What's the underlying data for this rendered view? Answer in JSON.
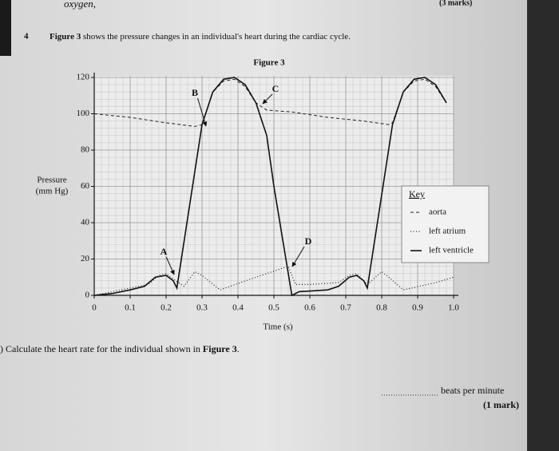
{
  "header": {
    "handwriting": "oxygen,",
    "marks": "(3 marks)"
  },
  "question": {
    "number": "4",
    "parts": [
      "Figure 3",
      " shows the pressure changes in an individual's heart during the cardiac cycle."
    ]
  },
  "subquestion": {
    "parts": [
      ") Calculate the heart rate for the individual shown in ",
      "Figure 3",
      "."
    ]
  },
  "answer": {
    "unit": "beats per minute",
    "marks": "(1 mark)"
  },
  "chart_data": {
    "type": "line",
    "title": "Figure 3",
    "xlabel": "Time (s)",
    "ylabel": [
      "Pressure",
      "(mm Hg)"
    ],
    "xlim": [
      0,
      1
    ],
    "ylim": [
      0,
      120
    ],
    "xticks": [
      0,
      0.1,
      0.2,
      0.3,
      0.4,
      0.5,
      0.6,
      0.7,
      0.8,
      0.9,
      {
        "value": 1,
        "label": "1.0"
      }
    ],
    "yticks": [
      0,
      20,
      40,
      60,
      80,
      100,
      120
    ],
    "grid": true,
    "legend": "right",
    "legend_title": "Key",
    "annotations": [
      "A",
      "B",
      "C",
      "D"
    ],
    "series": [
      {
        "name": "aorta",
        "color": "#222",
        "style": "dashed",
        "x": [
          0,
          0.1,
          0.2,
          0.28,
          0.3,
          0.33,
          0.36,
          0.39,
          0.42,
          0.45,
          0.48,
          0.55,
          0.65,
          0.75,
          0.82,
          0.83,
          0.86,
          0.89,
          0.92,
          0.95,
          0.98
        ],
        "values": [
          100,
          98,
          95,
          93,
          94,
          112,
          118,
          119,
          115,
          106,
          102,
          101,
          98,
          96,
          94,
          95,
          112,
          118,
          119,
          115,
          106
        ]
      },
      {
        "name": "left atrium",
        "color": "#222",
        "style": "dotted",
        "x": [
          0,
          0.1,
          0.15,
          0.18,
          0.2,
          0.22,
          0.25,
          0.28,
          0.3,
          0.35,
          0.45,
          0.54,
          0.56,
          0.6,
          0.68,
          0.71,
          0.73,
          0.76,
          0.8,
          0.82,
          0.86,
          0.95,
          1
        ],
        "values": [
          0,
          4,
          6,
          11,
          12,
          9,
          5,
          13,
          11,
          3,
          10,
          16,
          6,
          6,
          7,
          11,
          12,
          6,
          13,
          10,
          3,
          7,
          10
        ]
      },
      {
        "name": "left ventricle",
        "color": "#111",
        "style": "solid",
        "x": [
          0,
          0.05,
          0.1,
          0.14,
          0.17,
          0.2,
          0.22,
          0.23,
          0.3,
          0.33,
          0.36,
          0.39,
          0.42,
          0.45,
          0.48,
          0.5,
          0.55,
          0.57,
          0.65,
          0.68,
          0.71,
          0.73,
          0.75,
          0.76,
          0.83,
          0.86,
          0.89,
          0.92,
          0.95,
          0.98
        ],
        "values": [
          0,
          1,
          3,
          5,
          10,
          11,
          8,
          4,
          94,
          112,
          119,
          120,
          116,
          106,
          88,
          60,
          0,
          2,
          3,
          5,
          10,
          11,
          8,
          4,
          94,
          112,
          119,
          120,
          116,
          106
        ]
      }
    ]
  }
}
